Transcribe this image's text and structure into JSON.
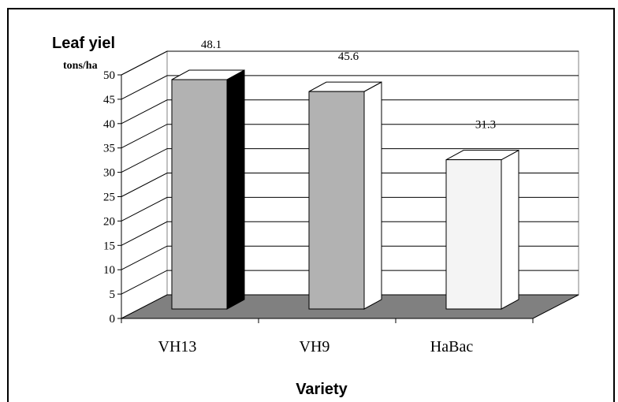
{
  "chart_data": {
    "type": "bar",
    "title": "Leaf yiel",
    "ylabel": "tons/ha",
    "xlabel": "Variety",
    "categories": [
      "VH13",
      "VH9",
      "HaBac"
    ],
    "values": [
      48.1,
      45.6,
      31.3
    ],
    "data_labels": [
      "48.1",
      "45.6",
      "31.3"
    ],
    "ylim": [
      0,
      50
    ],
    "yticks": [
      "0",
      "5",
      "10",
      "15",
      "20",
      "25",
      "30",
      "35",
      "40",
      "45",
      "50"
    ],
    "grid": true,
    "three_d": true,
    "bar_colors": {
      "front": [
        "#b2b2b2",
        "#b2b2b2",
        "#f4f4f4"
      ],
      "side": [
        "#000000",
        "#ffffff",
        "#ffffff"
      ],
      "top": [
        "#ffffff",
        "#ffffff",
        "#ffffff"
      ]
    },
    "floor_color": "#808080"
  }
}
